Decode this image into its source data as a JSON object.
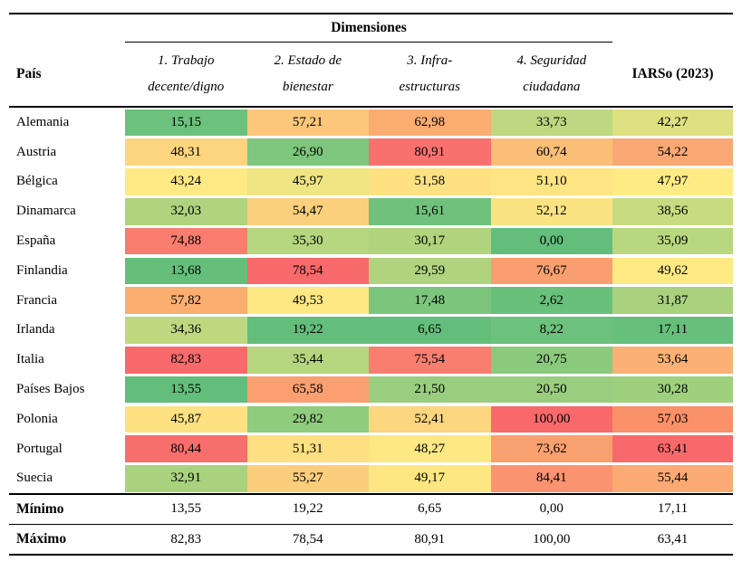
{
  "table": {
    "title": "Dimensiones",
    "country_header": "País",
    "iarso_header": "IARSo (2023)",
    "dimension_headers": [
      {
        "line1": "1. Trabajo",
        "line2": "decente/digno"
      },
      {
        "line1": "2. Estado de",
        "line2": "bienestar"
      },
      {
        "line1": "3. Infra-",
        "line2": "estructuras"
      },
      {
        "line1": "4. Seguridad",
        "line2": "ciudadana"
      }
    ],
    "rows": [
      {
        "country": "Alemania",
        "values": [
          "15,15",
          "57,21",
          "62,98",
          "33,73",
          "42,27"
        ],
        "colors": [
          "#6CC17C",
          "#FCC77B",
          "#FAAC71",
          "#BDD880",
          "#DEE081"
        ]
      },
      {
        "country": "Austria",
        "values": [
          "48,31",
          "26,90",
          "80,91",
          "60,74",
          "54,22"
        ],
        "colors": [
          "#FDD57F",
          "#7EC67D",
          "#F8716E",
          "#FBBE77",
          "#FAA873"
        ]
      },
      {
        "country": "Bélgica",
        "values": [
          "43,24",
          "45,97",
          "51,58",
          "51,10",
          "47,97"
        ],
        "colors": [
          "#FFE984",
          "#EFE683",
          "#FEE282",
          "#FEE483",
          "#FFEB84"
        ]
      },
      {
        "country": "Dinamarca",
        "values": [
          "32,03",
          "54,47",
          "15,61",
          "52,12",
          "38,56"
        ],
        "colors": [
          "#AFD37E",
          "#FBD07D",
          "#70C17C",
          "#FBE382",
          "#C9DB80"
        ]
      },
      {
        "country": "España",
        "values": [
          "74,88",
          "35,30",
          "30,17",
          "0,00",
          "35,09"
        ],
        "colors": [
          "#F97D6F",
          "#B6D67F",
          "#B1D47E",
          "#63BE7B",
          "#B9D77F"
        ]
      },
      {
        "country": "Finlandia",
        "values": [
          "13,68",
          "78,54",
          "29,59",
          "76,67",
          "49,62"
        ],
        "colors": [
          "#65BF7B",
          "#F8696B",
          "#AFD37E",
          "#F99E6E",
          "#FEE983"
        ]
      },
      {
        "country": "Francia",
        "values": [
          "57,82",
          "49,53",
          "17,48",
          "2,62",
          "31,87"
        ],
        "colors": [
          "#FAAE70",
          "#FEE883",
          "#7CC57D",
          "#68C07B",
          "#A9D27E"
        ]
      },
      {
        "country": "Irlanda",
        "values": [
          "34,36",
          "19,22",
          "6,65",
          "8,22",
          "17,11"
        ],
        "colors": [
          "#BED87F",
          "#63BE7B",
          "#63BE7B",
          "#6CC17C",
          "#66BF7B"
        ]
      },
      {
        "country": "Italia",
        "values": [
          "82,83",
          "35,44",
          "75,54",
          "20,75",
          "53,64"
        ],
        "colors": [
          "#F8696B",
          "#B6D67F",
          "#F97E70",
          "#8BCA7D",
          "#FBB175"
        ]
      },
      {
        "country": "Países Bajos",
        "values": [
          "13,55",
          "65,58",
          "21,50",
          "20,50",
          "30,28"
        ],
        "colors": [
          "#63BE7B",
          "#F99F70",
          "#98CE7E",
          "#9ACE7E",
          "#9ED07E"
        ]
      },
      {
        "country": "Polonia",
        "values": [
          "45,87",
          "29,82",
          "52,41",
          "100,00",
          "57,03"
        ],
        "colors": [
          "#FEE282",
          "#90CC7D",
          "#FCD57F",
          "#F8696B",
          "#FA9168"
        ]
      },
      {
        "country": "Portugal",
        "values": [
          "80,44",
          "51,31",
          "48,27",
          "73,62",
          "63,41"
        ],
        "colors": [
          "#F86E6C",
          "#FDE081",
          "#FEE883",
          "#F9A06F",
          "#F8696B"
        ]
      },
      {
        "country": "Suecia",
        "values": [
          "32,91",
          "55,27",
          "49,17",
          "84,41",
          "55,44"
        ],
        "colors": [
          "#A9D27E",
          "#FBCE7C",
          "#FEE782",
          "#FA9370",
          "#FBAA74"
        ]
      }
    ],
    "summary_rows": [
      {
        "label": "Mínimo",
        "values": [
          "13,55",
          "19,22",
          "6,65",
          "0,00",
          "17,11"
        ]
      },
      {
        "label": "Máximo",
        "values": [
          "82,83",
          "78,54",
          "80,91",
          "100,00",
          "63,41"
        ]
      }
    ]
  },
  "chart_data": {
    "type": "heatmap",
    "title": "Dimensiones",
    "row_label_header": "País",
    "columns": [
      "1. Trabajo decente/digno",
      "2. Estado de bienestar",
      "3. Infra-estructuras",
      "4. Seguridad ciudadana",
      "IARSo (2023)"
    ],
    "rows": [
      "Alemania",
      "Austria",
      "Bélgica",
      "Dinamarca",
      "España",
      "Finlandia",
      "Francia",
      "Irlanda",
      "Italia",
      "Países Bajos",
      "Polonia",
      "Portugal",
      "Suecia"
    ],
    "values": [
      [
        15.15,
        57.21,
        62.98,
        33.73,
        42.27
      ],
      [
        48.31,
        26.9,
        80.91,
        60.74,
        54.22
      ],
      [
        43.24,
        45.97,
        51.58,
        51.1,
        47.97
      ],
      [
        32.03,
        54.47,
        15.61,
        52.12,
        38.56
      ],
      [
        74.88,
        35.3,
        30.17,
        0.0,
        35.09
      ],
      [
        13.68,
        78.54,
        29.59,
        76.67,
        49.62
      ],
      [
        57.82,
        49.53,
        17.48,
        2.62,
        31.87
      ],
      [
        34.36,
        19.22,
        6.65,
        8.22,
        17.11
      ],
      [
        82.83,
        35.44,
        75.54,
        20.75,
        53.64
      ],
      [
        13.55,
        65.58,
        21.5,
        20.5,
        30.28
      ],
      [
        45.87,
        29.82,
        52.41,
        100.0,
        57.03
      ],
      [
        80.44,
        51.31,
        48.27,
        73.62,
        63.41
      ],
      [
        32.91,
        55.27,
        49.17,
        84.41,
        55.44
      ]
    ],
    "min_row": {
      "label": "Mínimo",
      "values": [
        13.55,
        19.22,
        6.65,
        0.0,
        17.11
      ]
    },
    "max_row": {
      "label": "Máximo",
      "values": [
        82.83,
        78.54,
        80.91,
        100.0,
        63.41
      ]
    },
    "color_scale": {
      "low": "#63BE7B",
      "mid": "#FFEB84",
      "high": "#F8696B"
    },
    "value_format": "comma-decimal"
  }
}
